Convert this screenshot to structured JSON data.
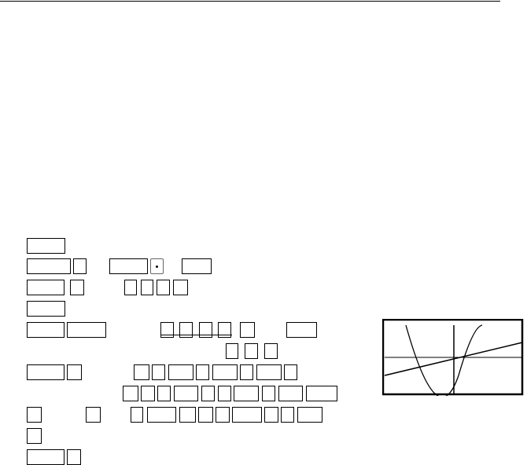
{
  "document": {
    "keystroke_rows": 11,
    "graph": {
      "type": "calculator-graph-screen",
      "curves": [
        "parabola",
        "line"
      ]
    },
    "colors": {
      "ink": "#000000",
      "background": "#ffffff"
    }
  }
}
